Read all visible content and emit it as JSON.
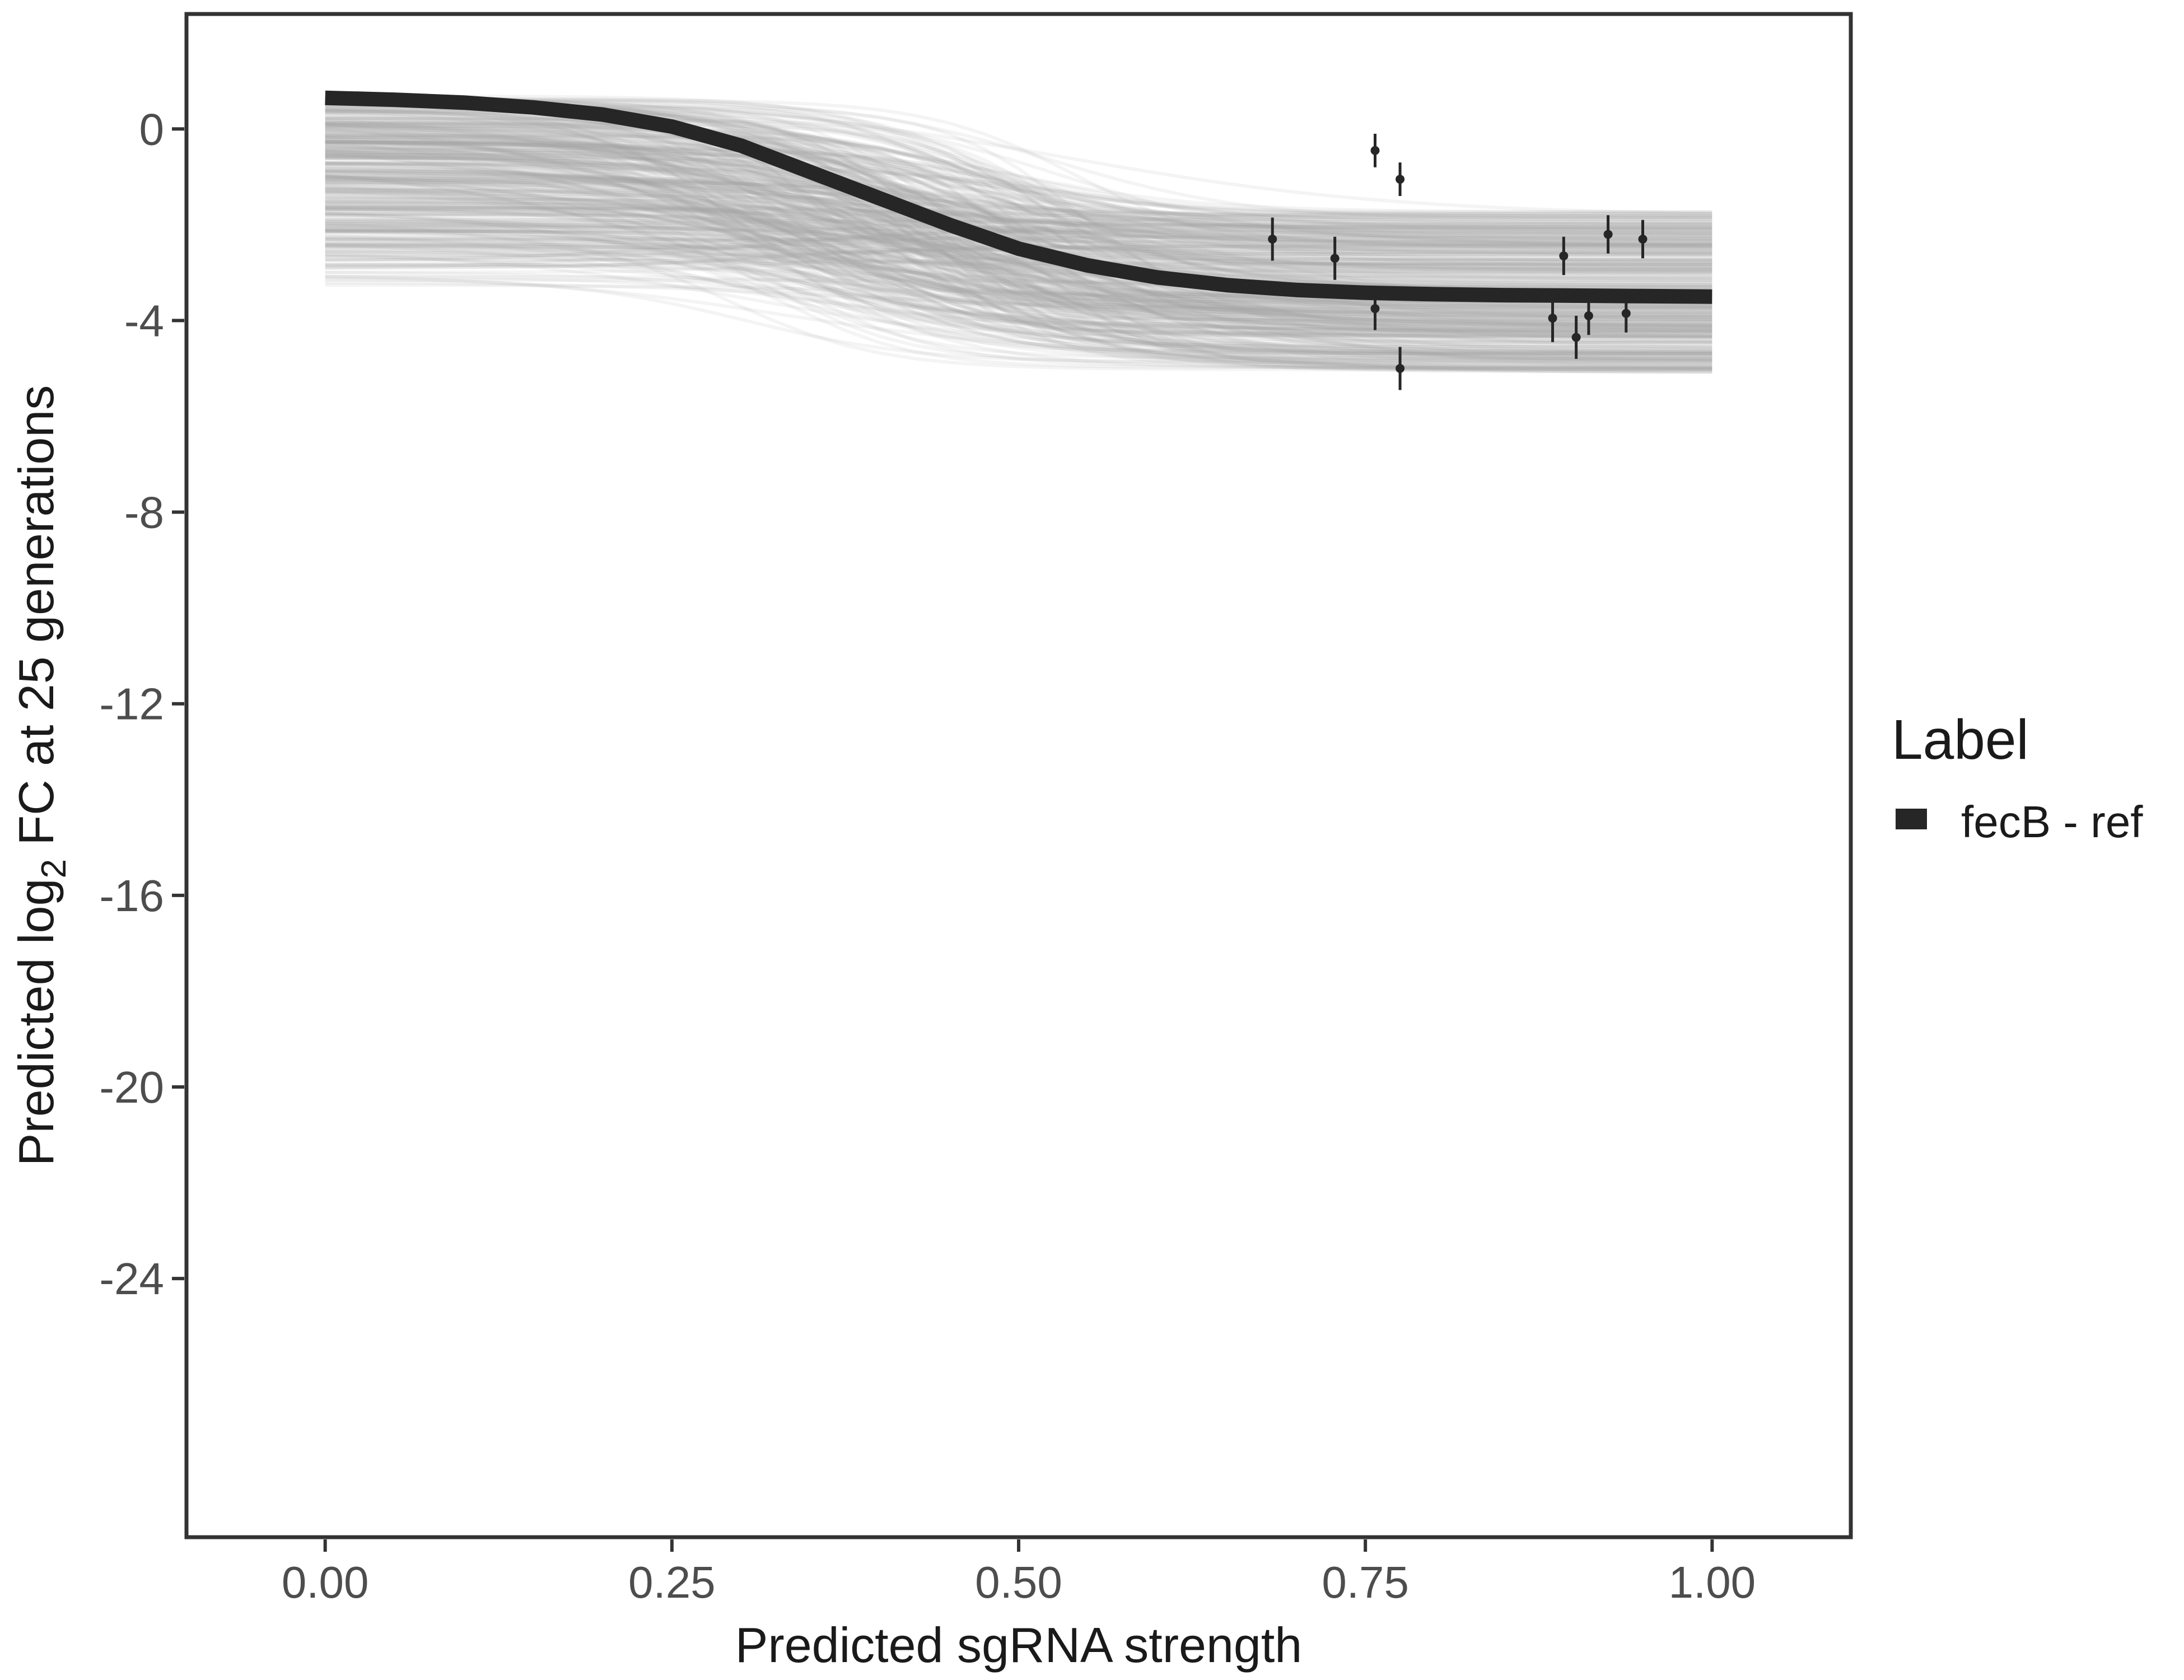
{
  "chart_data": {
    "type": "line",
    "title": "",
    "xlabel": "Predicted sgRNA strength",
    "ylabel": {
      "prefix": "Predicted  log",
      "subscript": "2",
      "suffix": " FC at 25 generations"
    },
    "xlim": [
      -0.1,
      1.1
    ],
    "ylim": [
      -29.4,
      2.4
    ],
    "x_ticks": [
      {
        "value": 0.0,
        "label": "0.00"
      },
      {
        "value": 0.25,
        "label": "0.25"
      },
      {
        "value": 0.5,
        "label": "0.50"
      },
      {
        "value": 0.75,
        "label": "0.75"
      },
      {
        "value": 1.0,
        "label": "1.00"
      }
    ],
    "y_ticks": [
      {
        "value": 0,
        "label": "0"
      },
      {
        "value": -4,
        "label": "-4"
      },
      {
        "value": -8,
        "label": "-8"
      },
      {
        "value": -12,
        "label": "-12"
      },
      {
        "value": -16,
        "label": "-16"
      },
      {
        "value": -20,
        "label": "-20"
      },
      {
        "value": -24,
        "label": "-24"
      }
    ],
    "grid": false,
    "legend": {
      "title": "Label",
      "placement": "right",
      "entries": [
        {
          "label": "fecB - ref",
          "color": "#262626"
        }
      ]
    },
    "fitted_curve": {
      "name": "fecB - ref",
      "color": "#262626",
      "x": [
        0.0,
        0.05,
        0.1,
        0.15,
        0.2,
        0.25,
        0.3,
        0.35,
        0.4,
        0.45,
        0.5,
        0.55,
        0.6,
        0.65,
        0.7,
        0.75,
        0.8,
        0.85,
        0.9,
        0.95,
        1.0
      ],
      "y": [
        0.65,
        0.61,
        0.55,
        0.45,
        0.3,
        0.05,
        -0.35,
        -0.9,
        -1.45,
        -2.0,
        -2.5,
        -2.85,
        -3.1,
        -3.26,
        -3.36,
        -3.42,
        -3.45,
        -3.47,
        -3.48,
        -3.49,
        -3.5
      ]
    },
    "posterior_draws": {
      "color": "#a6a6a6",
      "count": 400,
      "y_start_range": [
        -3.3,
        0.7
      ],
      "y_end_range": [
        -5.1,
        -1.7
      ]
    },
    "points": [
      {
        "x": 0.683,
        "y": -2.3,
        "ymin": -2.75,
        "ymax": -1.85
      },
      {
        "x": 0.728,
        "y": -2.7,
        "ymin": -3.15,
        "ymax": -2.25
      },
      {
        "x": 0.757,
        "y": -0.45,
        "ymin": -0.8,
        "ymax": -0.1
      },
      {
        "x": 0.757,
        "y": -3.75,
        "ymin": -4.2,
        "ymax": -3.3
      },
      {
        "x": 0.775,
        "y": -1.05,
        "ymin": -1.4,
        "ymax": -0.7
      },
      {
        "x": 0.775,
        "y": -5.0,
        "ymin": -5.45,
        "ymax": -4.55
      },
      {
        "x": 0.885,
        "y": -3.95,
        "ymin": -4.45,
        "ymax": -3.45
      },
      {
        "x": 0.893,
        "y": -2.65,
        "ymin": -3.05,
        "ymax": -2.25
      },
      {
        "x": 0.902,
        "y": -4.35,
        "ymin": -4.8,
        "ymax": -3.9
      },
      {
        "x": 0.911,
        "y": -3.9,
        "ymin": -4.3,
        "ymax": -3.5
      },
      {
        "x": 0.925,
        "y": -2.2,
        "ymin": -2.6,
        "ymax": -1.8
      },
      {
        "x": 0.938,
        "y": -3.85,
        "ymin": -4.25,
        "ymax": -3.45
      },
      {
        "x": 0.95,
        "y": -2.3,
        "ymin": -2.7,
        "ymax": -1.9
      }
    ]
  }
}
